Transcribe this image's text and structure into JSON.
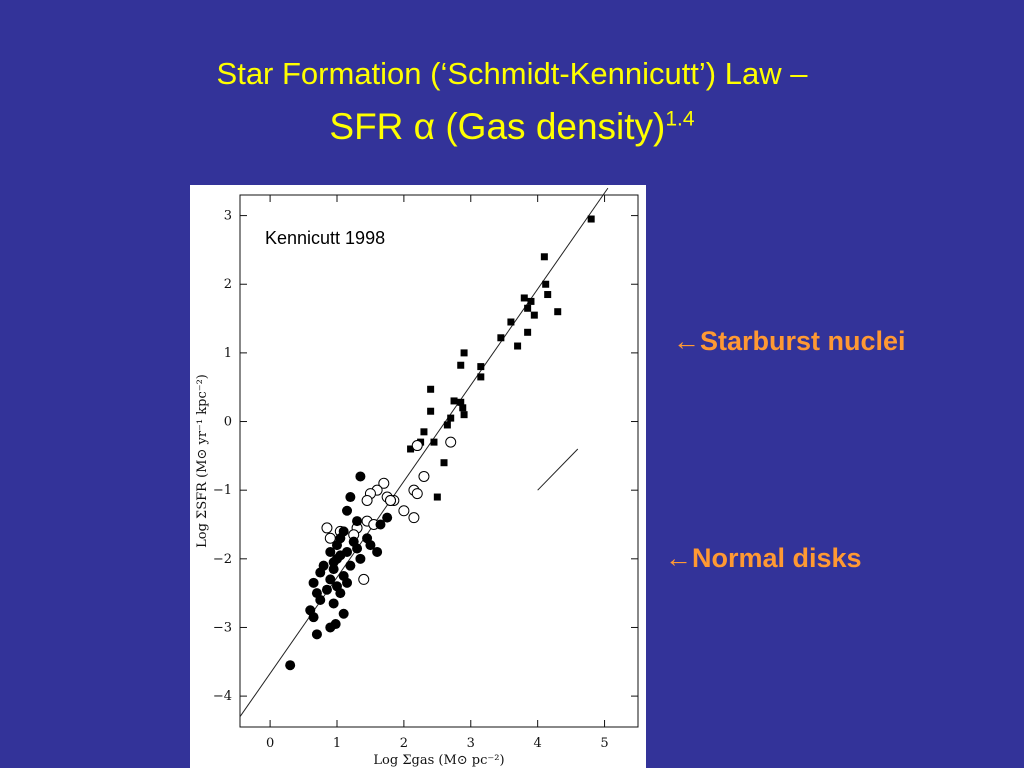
{
  "slide": {
    "title_line1": "Star Formation (‘Schmidt-Kennicutt’) Law –",
    "title_line2": "SFR α (Gas density)",
    "title_line2_sup": "1.4",
    "label_starburst": "←Starburst nuclei",
    "label_normal": "←Normal disks",
    "colors": {
      "background": "#333399",
      "title": "#ffff00",
      "labels": "#ff9933"
    }
  },
  "chart_data": {
    "type": "scatter",
    "annotation": "Kennicutt 1998",
    "xlabel": "Log Σgas (M⊙ pc⁻²)",
    "ylabel": "Log ΣSFR (M⊙ yr⁻¹ kpc⁻²)",
    "xlim": [
      -0.45,
      5.5
    ],
    "ylim": [
      -4.45,
      3.3
    ],
    "xticks": [
      "0",
      "1",
      "2",
      "3",
      "4",
      "5"
    ],
    "yticks": [
      "−4",
      "−3",
      "−2",
      "−1",
      "0",
      "1",
      "2",
      "3"
    ],
    "grid": false,
    "fit_line": {
      "x": [
        -0.45,
        5.05
      ],
      "y": [
        -4.3,
        3.4
      ]
    },
    "slope_marker": {
      "x": [
        4.0,
        4.6
      ],
      "y": [
        -1.0,
        -0.4
      ]
    },
    "series": [
      {
        "marker": "filled-square",
        "points": [
          [
            4.8,
            2.95
          ],
          [
            4.1,
            2.4
          ],
          [
            4.12,
            2.0
          ],
          [
            4.15,
            1.85
          ],
          [
            3.8,
            1.8
          ],
          [
            3.9,
            1.75
          ],
          [
            3.85,
            1.65
          ],
          [
            3.95,
            1.55
          ],
          [
            4.3,
            1.6
          ],
          [
            3.6,
            1.45
          ],
          [
            3.45,
            1.22
          ],
          [
            3.7,
            1.1
          ],
          [
            3.85,
            1.3
          ],
          [
            2.9,
            1.0
          ],
          [
            2.85,
            0.82
          ],
          [
            3.15,
            0.8
          ],
          [
            3.15,
            0.65
          ],
          [
            2.4,
            0.47
          ],
          [
            2.75,
            0.3
          ],
          [
            2.85,
            0.28
          ],
          [
            2.88,
            0.2
          ],
          [
            2.4,
            0.15
          ],
          [
            2.9,
            0.1
          ],
          [
            2.7,
            0.05
          ],
          [
            2.65,
            -0.05
          ],
          [
            2.3,
            -0.15
          ],
          [
            2.25,
            -0.3
          ],
          [
            2.45,
            -0.3
          ],
          [
            2.1,
            -0.4
          ],
          [
            2.6,
            -0.6
          ],
          [
            2.3,
            -0.8
          ],
          [
            2.5,
            -1.1
          ]
        ]
      },
      {
        "marker": "open-circle",
        "points": [
          [
            1.7,
            -0.9
          ],
          [
            1.6,
            -1.0
          ],
          [
            1.5,
            -1.05
          ],
          [
            1.75,
            -1.1
          ],
          [
            1.85,
            -1.15
          ],
          [
            1.8,
            -1.15
          ],
          [
            2.15,
            -1.0
          ],
          [
            2.2,
            -1.05
          ],
          [
            1.45,
            -1.15
          ],
          [
            1.45,
            -1.45
          ],
          [
            1.55,
            -1.5
          ],
          [
            1.3,
            -1.55
          ],
          [
            1.05,
            -1.6
          ],
          [
            0.85,
            -1.55
          ],
          [
            0.9,
            -1.7
          ],
          [
            1.25,
            -1.65
          ],
          [
            2.0,
            -1.3
          ],
          [
            2.15,
            -1.4
          ],
          [
            2.3,
            -0.8
          ],
          [
            2.7,
            -0.3
          ],
          [
            2.2,
            -0.35
          ],
          [
            1.8,
            -1.15
          ],
          [
            1.4,
            -2.3
          ]
        ]
      },
      {
        "marker": "filled-circle",
        "points": [
          [
            0.3,
            -3.55
          ],
          [
            0.7,
            -3.1
          ],
          [
            0.65,
            -2.85
          ],
          [
            0.9,
            -3.0
          ],
          [
            0.98,
            -2.95
          ],
          [
            1.1,
            -2.8
          ],
          [
            0.6,
            -2.75
          ],
          [
            0.75,
            -2.6
          ],
          [
            0.95,
            -2.65
          ],
          [
            1.05,
            -2.5
          ],
          [
            0.7,
            -2.5
          ],
          [
            0.85,
            -2.45
          ],
          [
            1.0,
            -2.4
          ],
          [
            1.15,
            -2.35
          ],
          [
            0.65,
            -2.35
          ],
          [
            0.9,
            -2.3
          ],
          [
            1.1,
            -2.25
          ],
          [
            0.75,
            -2.2
          ],
          [
            0.95,
            -2.15
          ],
          [
            1.2,
            -2.1
          ],
          [
            0.8,
            -2.1
          ],
          [
            1.0,
            -2.0
          ],
          [
            1.05,
            -1.95
          ],
          [
            1.15,
            -1.9
          ],
          [
            0.9,
            -1.9
          ],
          [
            1.3,
            -1.85
          ],
          [
            1.25,
            -1.75
          ],
          [
            1.45,
            -1.7
          ],
          [
            1.5,
            -1.8
          ],
          [
            1.6,
            -1.9
          ],
          [
            1.05,
            -1.7
          ],
          [
            1.1,
            -1.6
          ],
          [
            1.3,
            -1.45
          ],
          [
            1.15,
            -1.3
          ],
          [
            1.2,
            -1.1
          ],
          [
            1.35,
            -0.8
          ],
          [
            1.75,
            -1.4
          ],
          [
            1.65,
            -1.5
          ],
          [
            1.0,
            -1.8
          ],
          [
            0.95,
            -2.05
          ],
          [
            1.35,
            -2.0
          ]
        ]
      }
    ]
  }
}
